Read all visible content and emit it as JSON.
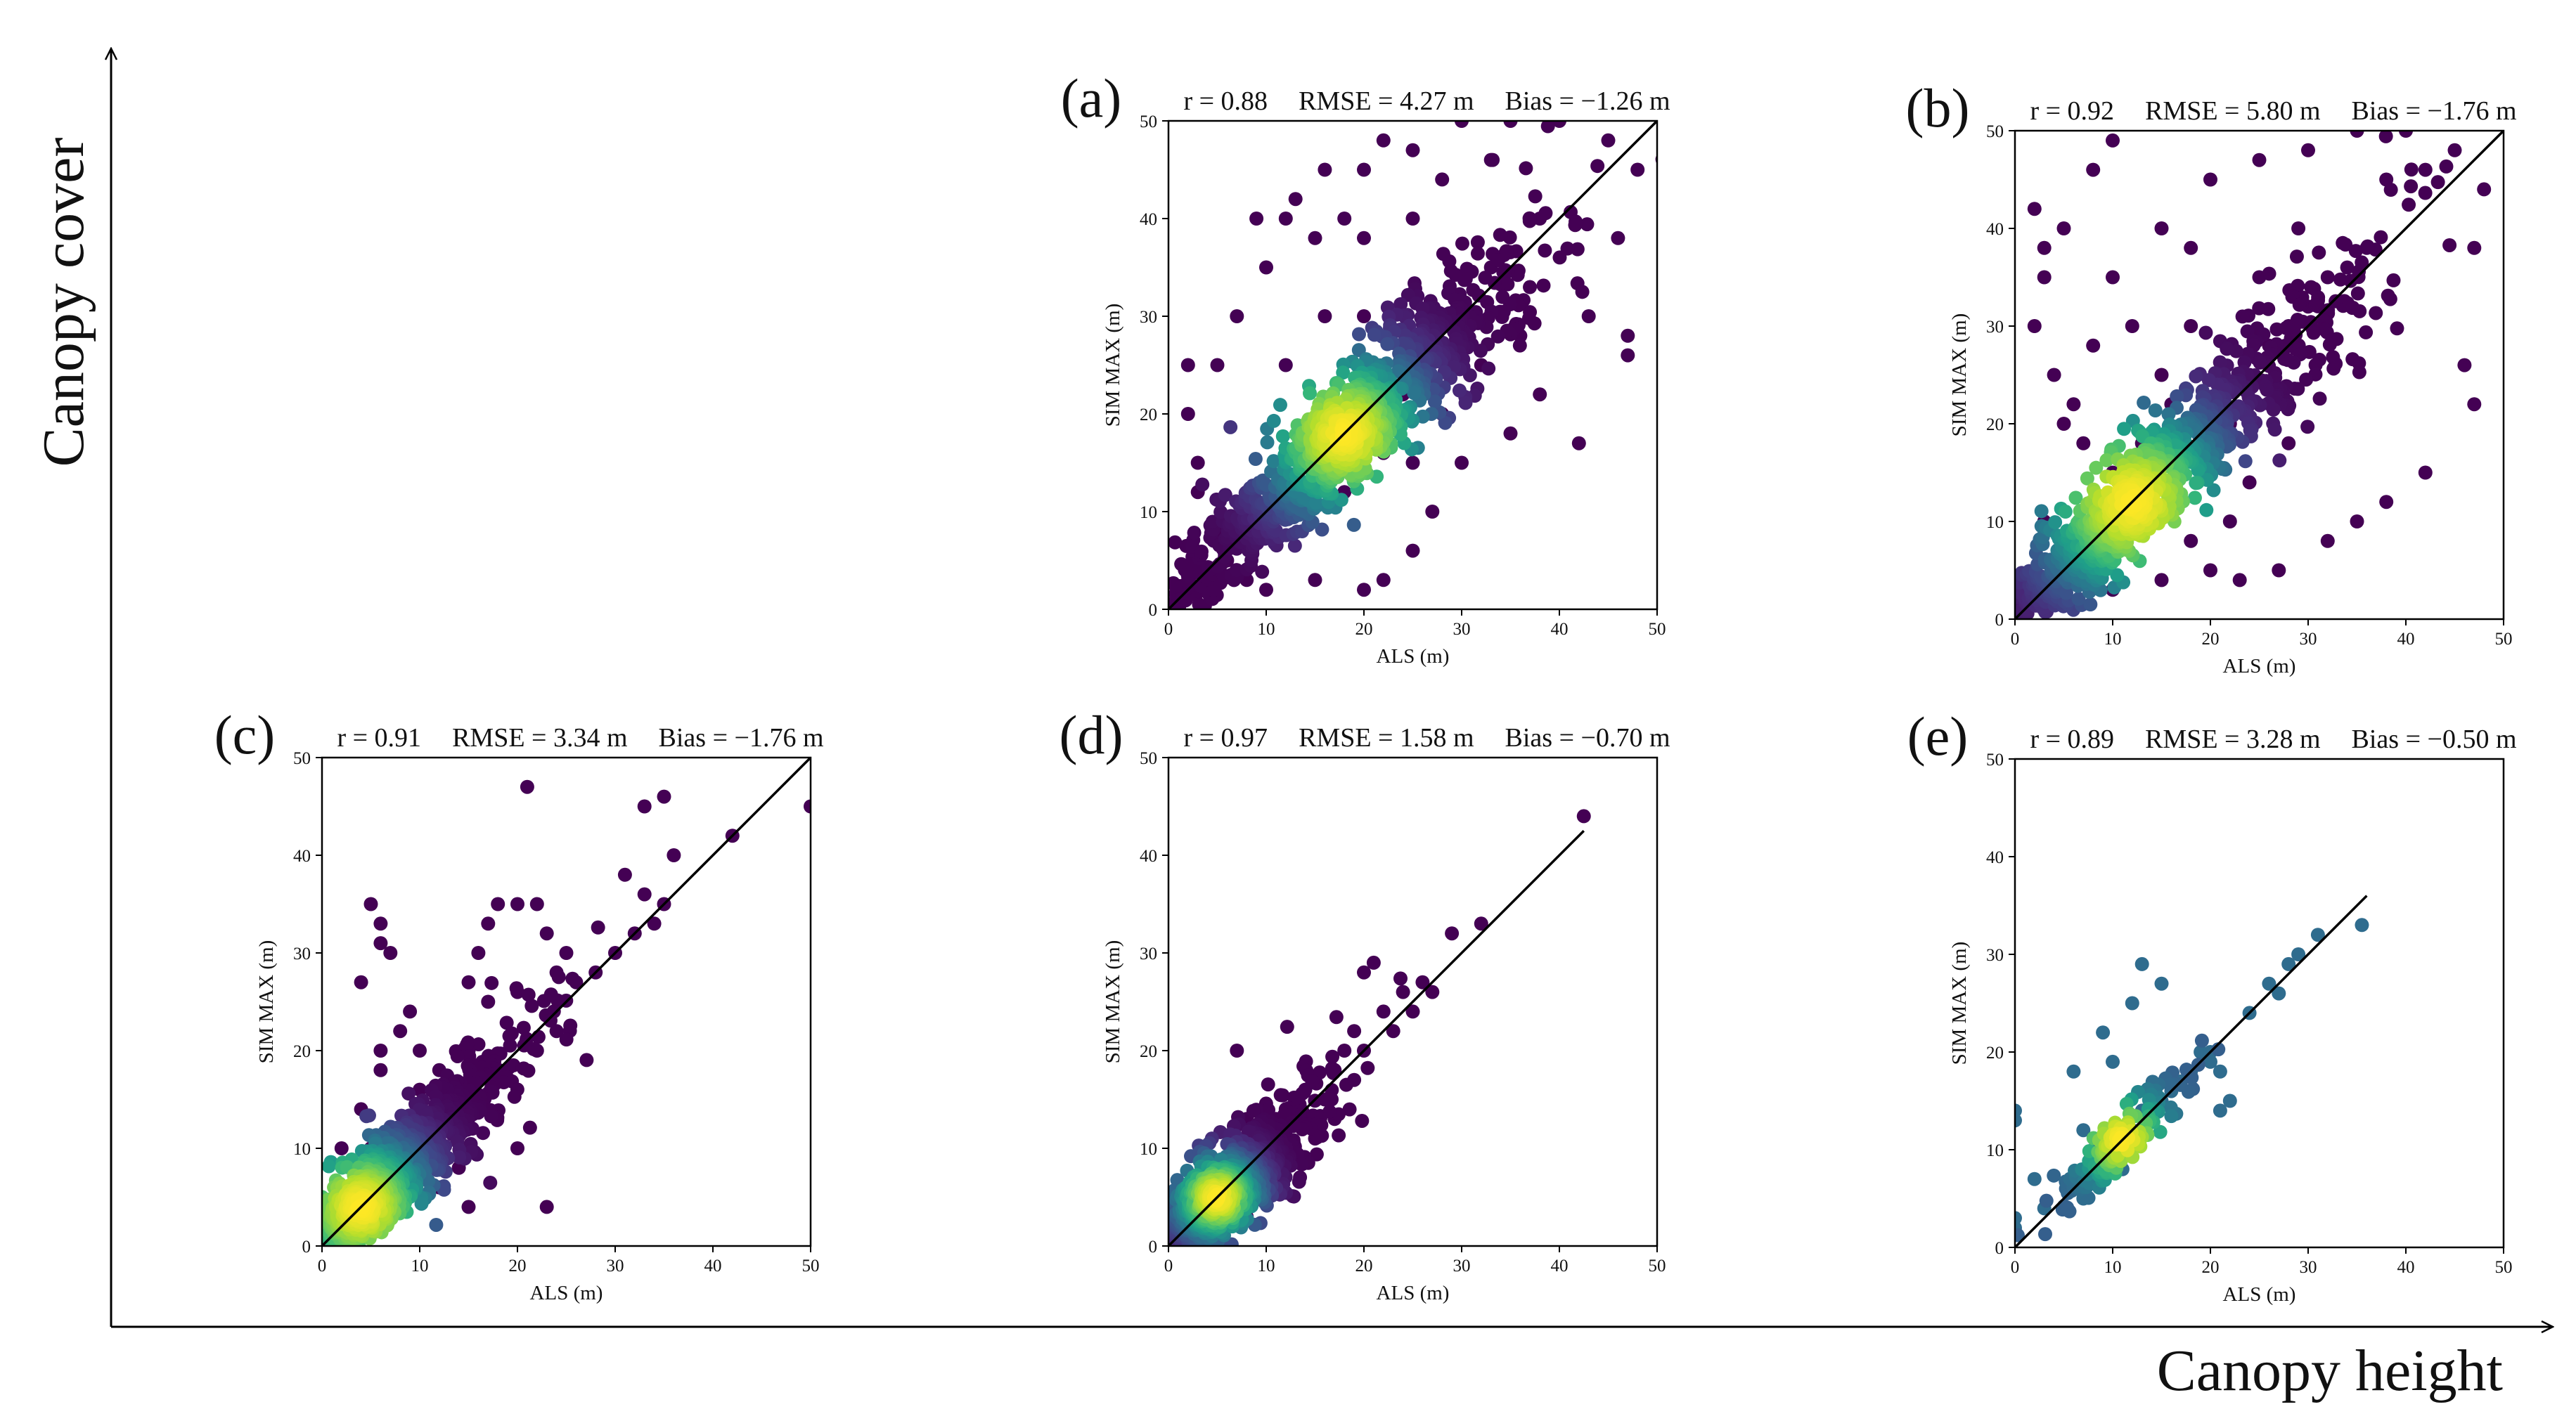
{
  "figure": {
    "y_axis_title": "Canopy cover",
    "x_axis_title": "Canopy height"
  },
  "chart_data": [
    {
      "type": "scatter",
      "panel": "(a)",
      "title": "r = 0.88    RMSE = 4.27 m    Bias = −1.26 m",
      "stats": {
        "r": "r = 0.88",
        "rmse": "RMSE = 4.27 m",
        "bias": "Bias = −1.26 m"
      },
      "xlabel": "ALS (m)",
      "ylabel": "SIM MAX (m)",
      "xlim": [
        0,
        50
      ],
      "ylim": [
        0,
        50
      ],
      "xticks": [
        0,
        10,
        20,
        30,
        40,
        50
      ],
      "yticks": [
        0,
        10,
        20,
        30,
        40,
        50
      ],
      "one_to_one_line": [
        [
          0,
          0
        ],
        [
          50,
          50
        ]
      ],
      "density_center": [
        18,
        18
      ],
      "density_spread": 6,
      "hotspot_color": "#fde725",
      "points": [
        [
          5,
          25
        ],
        [
          7,
          30
        ],
        [
          3,
          15
        ],
        [
          10,
          35
        ],
        [
          13,
          42
        ],
        [
          16,
          45
        ],
        [
          22,
          48
        ],
        [
          25,
          47
        ],
        [
          30,
          50
        ],
        [
          35,
          50
        ],
        [
          40,
          50
        ],
        [
          45,
          48
        ],
        [
          48,
          45
        ],
        [
          46,
          38
        ],
        [
          43,
          30
        ],
        [
          42,
          17
        ],
        [
          47,
          26
        ],
        [
          47,
          28
        ],
        [
          38,
          22
        ],
        [
          35,
          18
        ],
        [
          30,
          15
        ],
        [
          27,
          10
        ],
        [
          25,
          6
        ],
        [
          22,
          3
        ],
        [
          20,
          2
        ],
        [
          15,
          3
        ],
        [
          10,
          2
        ],
        [
          8,
          3
        ],
        [
          6,
          5
        ],
        [
          3,
          12
        ],
        [
          2,
          20
        ],
        [
          2,
          25
        ],
        [
          12,
          25
        ],
        [
          16,
          30
        ],
        [
          20,
          38
        ],
        [
          25,
          40
        ],
        [
          28,
          44
        ],
        [
          33,
          46
        ],
        [
          12,
          40
        ],
        [
          15,
          38
        ],
        [
          9,
          40
        ],
        [
          20,
          30
        ],
        [
          20,
          45
        ],
        [
          18,
          40
        ],
        [
          30,
          30
        ],
        [
          33,
          35
        ],
        [
          38,
          40
        ],
        [
          24,
          22
        ],
        [
          22,
          16
        ],
        [
          28,
          20
        ],
        [
          32,
          25
        ],
        [
          36,
          28
        ],
        [
          14,
          10
        ],
        [
          10,
          8
        ],
        [
          18,
          12
        ],
        [
          25,
          15
        ],
        [
          5,
          8
        ],
        [
          8,
          12
        ],
        [
          2,
          4
        ],
        [
          4,
          3
        ],
        [
          14,
          18
        ],
        [
          16,
          20
        ],
        [
          20,
          22
        ],
        [
          12,
          14
        ],
        [
          17,
          17
        ],
        [
          19,
          19
        ]
      ]
    },
    {
      "type": "scatter",
      "panel": "(b)",
      "title": "r = 0.92    RMSE = 5.80 m    Bias = −1.76 m",
      "stats": {
        "r": "r = 0.92",
        "rmse": "RMSE = 5.80 m",
        "bias": "Bias = −1.76 m"
      },
      "xlabel": "ALS (m)",
      "ylabel": "SIM MAX (m)",
      "xlim": [
        0,
        50
      ],
      "ylim": [
        0,
        50
      ],
      "xticks": [
        0,
        10,
        20,
        30,
        40,
        50
      ],
      "yticks": [
        0,
        10,
        20,
        30,
        40,
        50
      ],
      "one_to_one_line": [
        [
          0,
          0
        ],
        [
          50,
          50
        ]
      ],
      "density_center": [
        12,
        12
      ],
      "density_spread": 7,
      "hotspot_color": "#fde725",
      "points": [
        [
          2,
          42
        ],
        [
          3,
          38
        ],
        [
          5,
          40
        ],
        [
          8,
          46
        ],
        [
          10,
          49
        ],
        [
          3,
          35
        ],
        [
          2,
          30
        ],
        [
          4,
          25
        ],
        [
          6,
          22
        ],
        [
          8,
          28
        ],
        [
          10,
          35
        ],
        [
          12,
          30
        ],
        [
          15,
          40
        ],
        [
          18,
          38
        ],
        [
          20,
          45
        ],
        [
          25,
          47
        ],
        [
          30,
          48
        ],
        [
          35,
          50
        ],
        [
          40,
          50
        ],
        [
          45,
          48
        ],
        [
          48,
          44
        ],
        [
          47,
          38
        ],
        [
          46,
          26
        ],
        [
          47,
          22
        ],
        [
          42,
          15
        ],
        [
          38,
          12
        ],
        [
          35,
          10
        ],
        [
          32,
          8
        ],
        [
          27,
          5
        ],
        [
          23,
          4
        ],
        [
          20,
          5
        ],
        [
          15,
          4
        ],
        [
          10,
          3
        ],
        [
          7,
          5
        ],
        [
          22,
          20
        ],
        [
          24,
          25
        ],
        [
          26,
          28
        ],
        [
          28,
          30
        ],
        [
          30,
          32
        ],
        [
          32,
          35
        ],
        [
          34,
          36
        ],
        [
          36,
          38
        ],
        [
          5,
          20
        ],
        [
          7,
          18
        ],
        [
          15,
          25
        ],
        [
          18,
          30
        ],
        [
          25,
          35
        ],
        [
          29,
          40
        ],
        [
          38,
          45
        ],
        [
          42,
          46
        ],
        [
          10,
          15
        ],
        [
          13,
          18
        ],
        [
          16,
          22
        ],
        [
          19,
          18
        ],
        [
          24,
          14
        ],
        [
          28,
          18
        ],
        [
          18,
          8
        ],
        [
          22,
          10
        ],
        [
          3,
          10
        ],
        [
          5,
          5
        ]
      ]
    },
    {
      "type": "scatter",
      "panel": "(c)",
      "title": "r = 0.91    RMSE = 3.34 m    Bias = −1.76 m",
      "stats": {
        "r": "r = 0.91",
        "rmse": "RMSE = 3.34 m",
        "bias": "Bias = −1.76 m"
      },
      "xlabel": "ALS (m)",
      "ylabel": "SIM MAX (m)",
      "xlim": [
        0,
        50
      ],
      "ylim": [
        0,
        50
      ],
      "xticks": [
        0,
        10,
        20,
        30,
        40,
        50
      ],
      "yticks": [
        0,
        10,
        20,
        30,
        40,
        50
      ],
      "one_to_one_line": [
        [
          0,
          0
        ],
        [
          50,
          50
        ]
      ],
      "density_center": [
        4,
        4
      ],
      "density_spread": 5,
      "hotspot_color": "#fde725",
      "points": [
        [
          4,
          27
        ],
        [
          5,
          35
        ],
        [
          6,
          33
        ],
        [
          6,
          31
        ],
        [
          7,
          30
        ],
        [
          21,
          47
        ],
        [
          35,
          46
        ],
        [
          33,
          45
        ],
        [
          36,
          40
        ],
        [
          42,
          42
        ],
        [
          50,
          45
        ],
        [
          31,
          38
        ],
        [
          33,
          36
        ],
        [
          35,
          35
        ],
        [
          34,
          33
        ],
        [
          32,
          32
        ],
        [
          30,
          30
        ],
        [
          28,
          28
        ],
        [
          25,
          30
        ],
        [
          23,
          32
        ],
        [
          22,
          35
        ],
        [
          20,
          35
        ],
        [
          18,
          35
        ],
        [
          17,
          33
        ],
        [
          16,
          30
        ],
        [
          15,
          27
        ],
        [
          17,
          25
        ],
        [
          20,
          26
        ],
        [
          24,
          28
        ],
        [
          26,
          27
        ],
        [
          15,
          20
        ],
        [
          12,
          18
        ],
        [
          10,
          20
        ],
        [
          8,
          22
        ],
        [
          6,
          18
        ],
        [
          4,
          14
        ],
        [
          5,
          10
        ],
        [
          8,
          9
        ],
        [
          12,
          12
        ],
        [
          16,
          14
        ],
        [
          18,
          18
        ],
        [
          22,
          20
        ],
        [
          24,
          22
        ],
        [
          10,
          16
        ],
        [
          3,
          8
        ],
        [
          7,
          7
        ],
        [
          12,
          6
        ],
        [
          15,
          4
        ],
        [
          23,
          4
        ],
        [
          20,
          10
        ],
        [
          14,
          8
        ],
        [
          9,
          24
        ],
        [
          6,
          20
        ],
        [
          2,
          10
        ],
        [
          1,
          4
        ],
        [
          3,
          2
        ]
      ]
    },
    {
      "type": "scatter",
      "panel": "(d)",
      "title": "r = 0.97    RMSE = 1.58 m    Bias = −0.70 m",
      "stats": {
        "r": "r = 0.97",
        "rmse": "RMSE = 1.58 m",
        "bias": "Bias = −0.70 m"
      },
      "xlabel": "ALS (m)",
      "ylabel": "SIM MAX (m)",
      "xlim": [
        0,
        50
      ],
      "ylim": [
        0,
        50
      ],
      "xticks": [
        0,
        10,
        20,
        30,
        40,
        50
      ],
      "yticks": [
        0,
        10,
        20,
        30,
        40,
        50
      ],
      "one_to_one_line": [
        [
          0,
          0
        ],
        [
          42.5,
          42.5
        ]
      ],
      "density_center": [
        5,
        5
      ],
      "density_spread": 3,
      "hotspot_color": "#fde725",
      "points": [
        [
          42.5,
          44
        ],
        [
          32,
          33
        ],
        [
          29,
          32
        ],
        [
          26,
          27
        ],
        [
          24,
          26
        ],
        [
          21,
          29
        ],
        [
          20,
          28
        ],
        [
          22,
          24
        ],
        [
          19,
          22
        ],
        [
          18,
          20
        ],
        [
          17,
          18
        ],
        [
          15,
          17
        ],
        [
          14,
          16
        ],
        [
          12,
          14
        ],
        [
          11,
          13
        ],
        [
          10,
          12
        ],
        [
          9,
          11
        ],
        [
          7,
          20
        ],
        [
          8,
          13
        ],
        [
          6,
          9
        ],
        [
          4,
          7
        ],
        [
          3,
          6
        ],
        [
          2,
          5
        ],
        [
          13,
          9
        ],
        [
          15,
          11
        ],
        [
          17,
          13
        ],
        [
          19,
          17
        ],
        [
          23,
          22
        ],
        [
          25,
          24
        ],
        [
          27,
          26
        ],
        [
          8,
          3
        ],
        [
          10,
          6
        ],
        [
          16,
          15
        ],
        [
          20,
          20
        ],
        [
          14,
          13
        ],
        [
          12,
          11
        ],
        [
          9,
          9
        ],
        [
          5,
          3
        ],
        [
          1,
          2
        ],
        [
          2,
          1
        ]
      ]
    },
    {
      "type": "scatter",
      "panel": "(e)",
      "title": "r = 0.89    RMSE = 3.28 m    Bias = −0.50 m",
      "stats": {
        "r": "r = 0.89",
        "rmse": "RMSE = 3.28 m",
        "bias": "Bias = −0.50 m"
      },
      "xlabel": "ALS (m)",
      "ylabel": "SIM MAX (m)",
      "xlim": [
        0,
        50
      ],
      "ylim": [
        0,
        50
      ],
      "xticks": [
        0,
        10,
        20,
        30,
        40,
        50
      ],
      "yticks": [
        0,
        10,
        20,
        30,
        40,
        50
      ],
      "one_to_one_line": [
        [
          0,
          0
        ],
        [
          36,
          36
        ]
      ],
      "density_center": [
        11,
        11
      ],
      "density_spread": 3,
      "hotspot_color": "#fde725",
      "points": [
        [
          0,
          14
        ],
        [
          0,
          13
        ],
        [
          0,
          2
        ],
        [
          0,
          3
        ],
        [
          6,
          18
        ],
        [
          9,
          22
        ],
        [
          12,
          25
        ],
        [
          13,
          29
        ],
        [
          15,
          27
        ],
        [
          10,
          19
        ],
        [
          7,
          12
        ],
        [
          8,
          10
        ],
        [
          9,
          8
        ],
        [
          10,
          9
        ],
        [
          11,
          10
        ],
        [
          12,
          12
        ],
        [
          13,
          14
        ],
        [
          14,
          13
        ],
        [
          15,
          15
        ],
        [
          16,
          16
        ],
        [
          17,
          17
        ],
        [
          18,
          18
        ],
        [
          19,
          20
        ],
        [
          20,
          19
        ],
        [
          21,
          18
        ],
        [
          22,
          15
        ],
        [
          21,
          14
        ],
        [
          20,
          20
        ],
        [
          24,
          24
        ],
        [
          26,
          27
        ],
        [
          28,
          29
        ],
        [
          29,
          30
        ],
        [
          31,
          32
        ],
        [
          35.5,
          33
        ],
        [
          27,
          26
        ],
        [
          9,
          7
        ],
        [
          7,
          5
        ],
        [
          5,
          4
        ],
        [
          3,
          4
        ],
        [
          2,
          7
        ],
        [
          11,
          8
        ],
        [
          12,
          11
        ],
        [
          14,
          14
        ],
        [
          13,
          12
        ],
        [
          10,
          11
        ],
        [
          11,
          12
        ]
      ]
    }
  ],
  "colors": {
    "viridis_dark": "#440154",
    "viridis_mid": "#21918c",
    "viridis_light": "#fde725",
    "line": "#000000",
    "axis": "#000000"
  }
}
